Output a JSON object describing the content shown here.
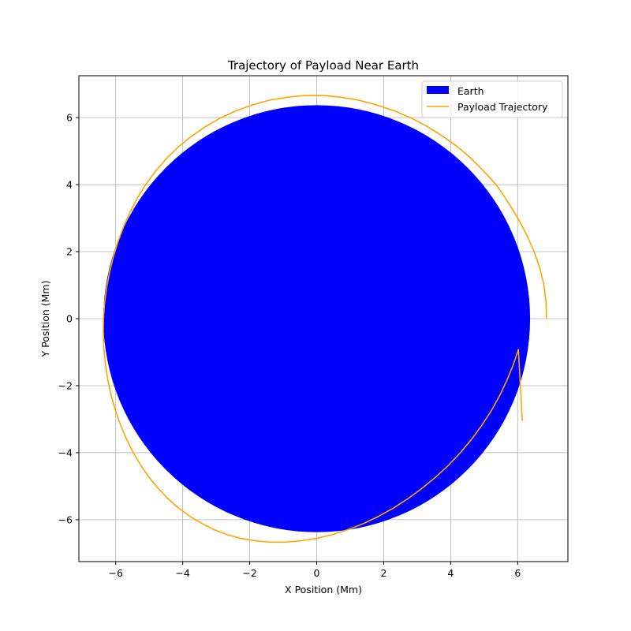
{
  "chart_data": {
    "type": "line",
    "title": "Trajectory of Payload Near Earth",
    "xlabel": "X Position (Mm)",
    "ylabel": "Y Position (Mm)",
    "xlim": [
      -7.1,
      7.5
    ],
    "ylim": [
      -7.25,
      7.25
    ],
    "xticks": [
      -6,
      -4,
      -2,
      0,
      2,
      4,
      6
    ],
    "yticks": [
      -6,
      -4,
      -2,
      0,
      2,
      4,
      6
    ],
    "xtick_labels": [
      "−6",
      "−4",
      "−2",
      "0",
      "2",
      "4",
      "6"
    ],
    "ytick_labels": [
      "−6",
      "−4",
      "−2",
      "0",
      "2",
      "4",
      "6"
    ],
    "grid": true,
    "legend_position": "top-right",
    "earth": {
      "name": "Earth",
      "center": [
        0,
        0
      ],
      "radius": 6.371,
      "color": "#0000ff"
    },
    "trajectory": {
      "name": "Payload Trajectory",
      "color": "#ffa500",
      "x": [
        6.86,
        6.847,
        6.784,
        6.665,
        6.492,
        6.271,
        6.005,
        5.698,
        5.357,
        4.987,
        4.593,
        4.176,
        3.737,
        3.276,
        2.795,
        2.296,
        1.783,
        1.258,
        0.725,
        0.188,
        -0.35,
        -0.883,
        -1.408,
        -1.92,
        -2.416,
        -2.89,
        -3.338,
        -3.757,
        -4.145,
        -4.5,
        -4.82,
        -5.105,
        -5.355,
        -5.573,
        -5.764,
        -5.931,
        -6.072,
        -6.186,
        -6.273,
        -6.333,
        -6.366,
        -6.372,
        -6.352,
        -6.306,
        -6.234,
        -6.135,
        -6.009,
        -5.857,
        -5.68,
        -5.479,
        -5.255,
        -5.007,
        -4.736,
        -4.442,
        -4.126,
        -3.789,
        -3.433,
        -3.057,
        -2.664,
        -2.254,
        -1.829,
        -1.391,
        -0.941,
        -0.482,
        -0.016,
        0.453,
        0.922,
        1.387,
        1.845,
        2.293,
        2.728,
        3.148,
        3.55,
        3.931,
        4.29,
        4.624,
        4.932,
        5.211,
        5.461,
        5.68,
        5.867,
        6.021,
        6.14
      ],
      "y": [
        0.0,
        0.5,
        1.0,
        1.5,
        2.0,
        2.5,
        3.0,
        3.5,
        4.0,
        4.4,
        4.8,
        5.15,
        5.46,
        5.75,
        6.0,
        6.21,
        6.38,
        6.52,
        6.61,
        6.66,
        6.66,
        6.61,
        6.52,
        6.38,
        6.2,
        5.98,
        5.72,
        5.43,
        5.11,
        4.76,
        4.39,
        4.0,
        3.6,
        3.18,
        2.75,
        2.3,
        1.84,
        1.38,
        0.92,
        0.46,
        0.0,
        -0.46,
        -0.92,
        -1.38,
        -1.84,
        -2.3,
        -2.74,
        -3.17,
        -3.59,
        -3.99,
        -4.37,
        -4.73,
        -5.06,
        -5.37,
        -5.65,
        -5.9,
        -6.11,
        -6.3,
        -6.45,
        -6.56,
        -6.63,
        -6.67,
        -6.67,
        -6.63,
        -6.56,
        -6.45,
        -6.3,
        -6.12,
        -5.9,
        -5.65,
        -5.37,
        -5.06,
        -4.73,
        -4.38,
        -4.0,
        -3.6,
        -3.18,
        -2.75,
        -2.3,
        -1.84,
        -1.38,
        -0.92,
        -3.05
      ]
    }
  }
}
